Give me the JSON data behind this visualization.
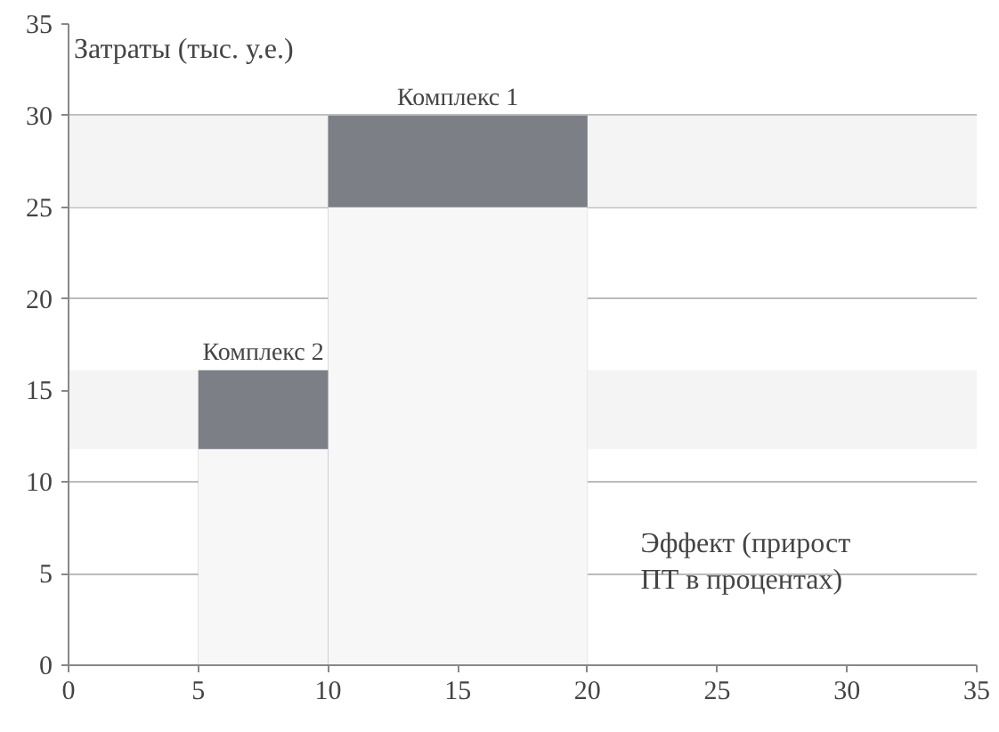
{
  "chart_data": {
    "type": "area",
    "ylabel": "Затраты (тыс. у.е.)",
    "xlabel": "Эффект (прирост\nПТ в процентах)",
    "series": [
      {
        "name": "Комплекс 1",
        "color": "#7d7f86",
        "x": [
          10,
          20
        ],
        "values": [
          30,
          30
        ]
      },
      {
        "color": "#f7f7f7",
        "x": [
          10,
          20
        ],
        "values": [
          25,
          25
        ]
      },
      {
        "name": "Комплекс 2",
        "color": "#7d7f86",
        "x": [
          5,
          10
        ],
        "values": [
          16.1,
          16.1
        ]
      },
      {
        "color": "#f7f7f7",
        "x": [
          5,
          10
        ],
        "values": [
          11.8,
          11.8
        ]
      }
    ],
    "bands": [
      {
        "axis": "y",
        "from": 25,
        "to": 30,
        "color": "#f4f4f4"
      },
      {
        "axis": "y",
        "from": 11.8,
        "to": 16.1,
        "color": "#f4f4f4"
      }
    ],
    "xlim": [
      0,
      35
    ],
    "ylim": [
      0,
      35
    ],
    "xticks": [
      0,
      5,
      10,
      15,
      20,
      25,
      30,
      35
    ],
    "yticks": [
      0,
      5,
      10,
      15,
      20,
      25,
      30,
      35
    ],
    "grid": "y"
  }
}
